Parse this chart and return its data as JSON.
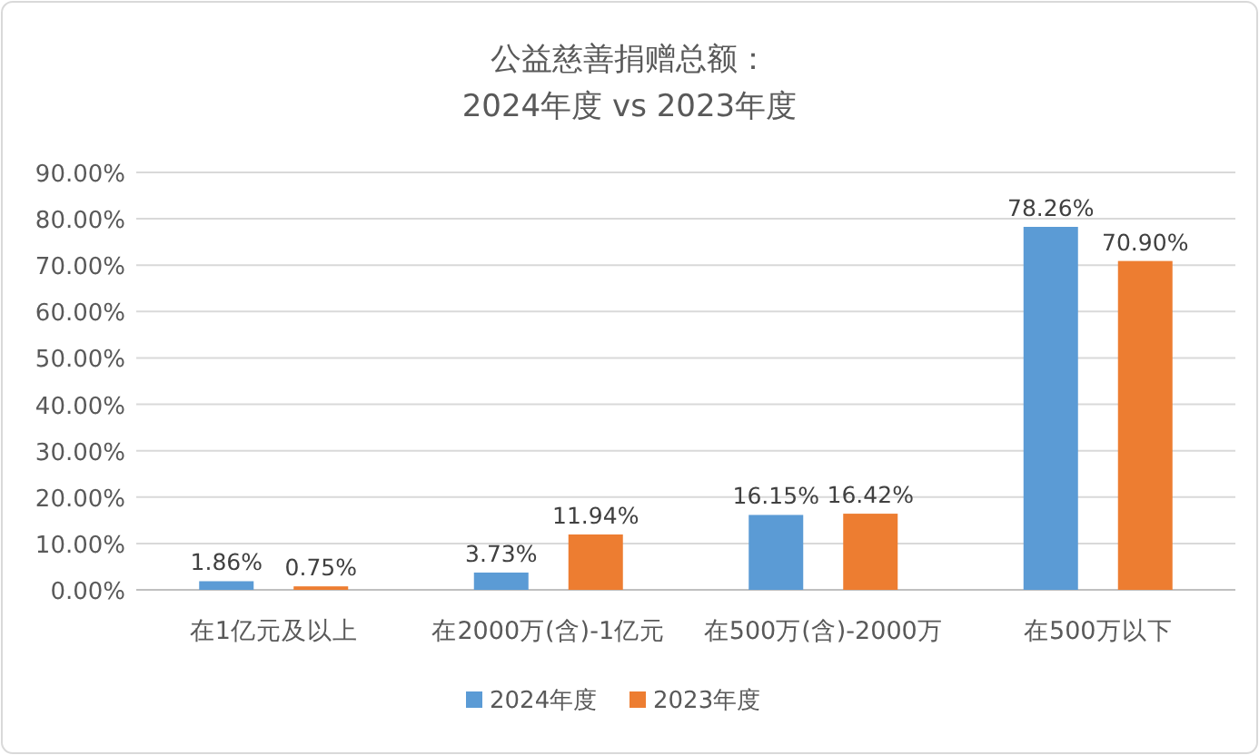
{
  "chart_data": {
    "type": "bar",
    "title": "公益慈善捐赠总额：",
    "subtitle": "2024年度 vs 2023年度",
    "categories": [
      "在1亿元及以上",
      "在2000万(含)-1亿元",
      "在500万(含)-2000万",
      "在500万以下"
    ],
    "series": [
      {
        "name": "2024年度",
        "color": "#5b9bd5",
        "values": [
          1.86,
          3.73,
          16.15,
          78.26
        ],
        "value_labels": [
          "1.86%",
          "3.73%",
          "16.15%",
          "78.26%"
        ]
      },
      {
        "name": "2023年度",
        "color": "#ed7d31",
        "values": [
          0.75,
          11.94,
          16.42,
          70.9
        ],
        "value_labels": [
          "0.75%",
          "11.94%",
          "16.42%",
          "70.90%"
        ]
      }
    ],
    "ylim": [
      0,
      90
    ],
    "yticks": [
      {
        "value": 0,
        "label": "0.00%"
      },
      {
        "value": 10,
        "label": "10.00%"
      },
      {
        "value": 20,
        "label": "20.00%"
      },
      {
        "value": 30,
        "label": "30.00%"
      },
      {
        "value": 40,
        "label": "40.00%"
      },
      {
        "value": 50,
        "label": "50.00%"
      },
      {
        "value": 60,
        "label": "60.00%"
      },
      {
        "value": 70,
        "label": "70.00%"
      },
      {
        "value": 80,
        "label": "80.00%"
      },
      {
        "value": 90,
        "label": "90.00%"
      }
    ],
    "grid": "y",
    "legend": "bottom"
  }
}
